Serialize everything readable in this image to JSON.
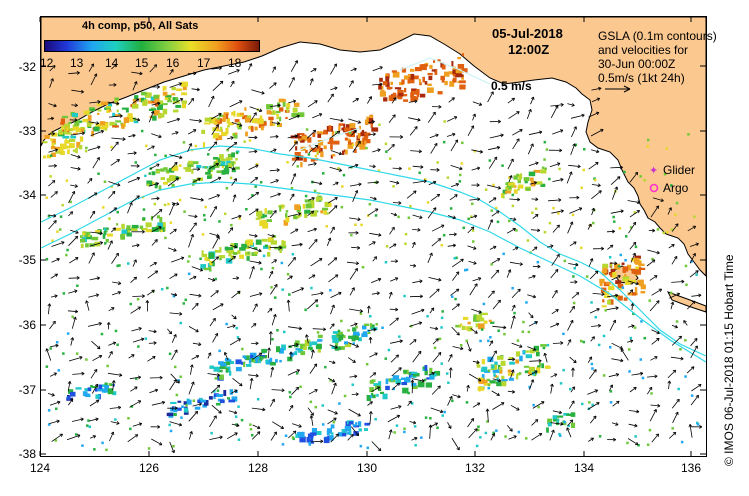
{
  "map": {
    "colorbar": {
      "title": "4h comp, p50, All Sats",
      "ticks": [
        "12",
        "13",
        "14",
        "15",
        "16",
        "17",
        "18"
      ]
    },
    "date": "05-Jul-2018",
    "time": "12:00Z",
    "info_lines": [
      "GSLA (0.1m contours)",
      "and velocities for",
      "30-Jun 00:00Z",
      "0.5m/s (1kt 24h)"
    ],
    "velocity_ref_label": "0.5 m/s",
    "legend": [
      {
        "label": "Glider",
        "color": "#cc33cc"
      },
      {
        "label": "Argo",
        "color": "#ff33cc"
      }
    ],
    "y_ticks": [
      "-32",
      "-33",
      "-34",
      "-35",
      "-36",
      "-37",
      "-38"
    ],
    "x_ticks": [
      "124",
      "126",
      "128",
      "130",
      "132",
      "134",
      "136"
    ],
    "credit": "© IMOS 06-Jul-2018 01:15 Hobart Time",
    "colors": {
      "land": "#fbc890",
      "contour": "#30d8e8",
      "coast": "#000000"
    }
  }
}
